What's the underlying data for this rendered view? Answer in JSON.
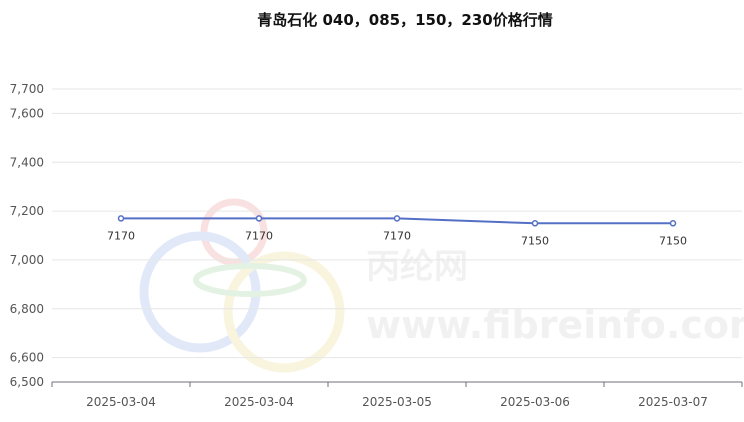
{
  "chart_data": {
    "type": "line",
    "title": "青岛石化 040，085，150，230价格行情",
    "categories": [
      "2025-03-04",
      "2025-03-04",
      "2025-03-05",
      "2025-03-06",
      "2025-03-07"
    ],
    "series": [
      {
        "values": [
          7170,
          7170,
          7170,
          7150,
          7150
        ]
      }
    ],
    "data_labels": [
      "7170",
      "7170",
      "7170",
      "7150",
      "7150"
    ],
    "y_ticks": [
      6500,
      6600,
      6800,
      7000,
      7200,
      7400,
      7600,
      7700
    ],
    "y_tick_labels": [
      "6,500",
      "6,600",
      "6,800",
      "7,000",
      "7,200",
      "7,400",
      "7,600",
      "7,700"
    ],
    "ylim": [
      6500,
      7700
    ],
    "grid": true,
    "line_color": "#5470c6",
    "xlabel": "",
    "ylabel": ""
  },
  "watermark": {
    "text_cn": "丙纶网",
    "text_url": "www.fibreinfo.com"
  }
}
